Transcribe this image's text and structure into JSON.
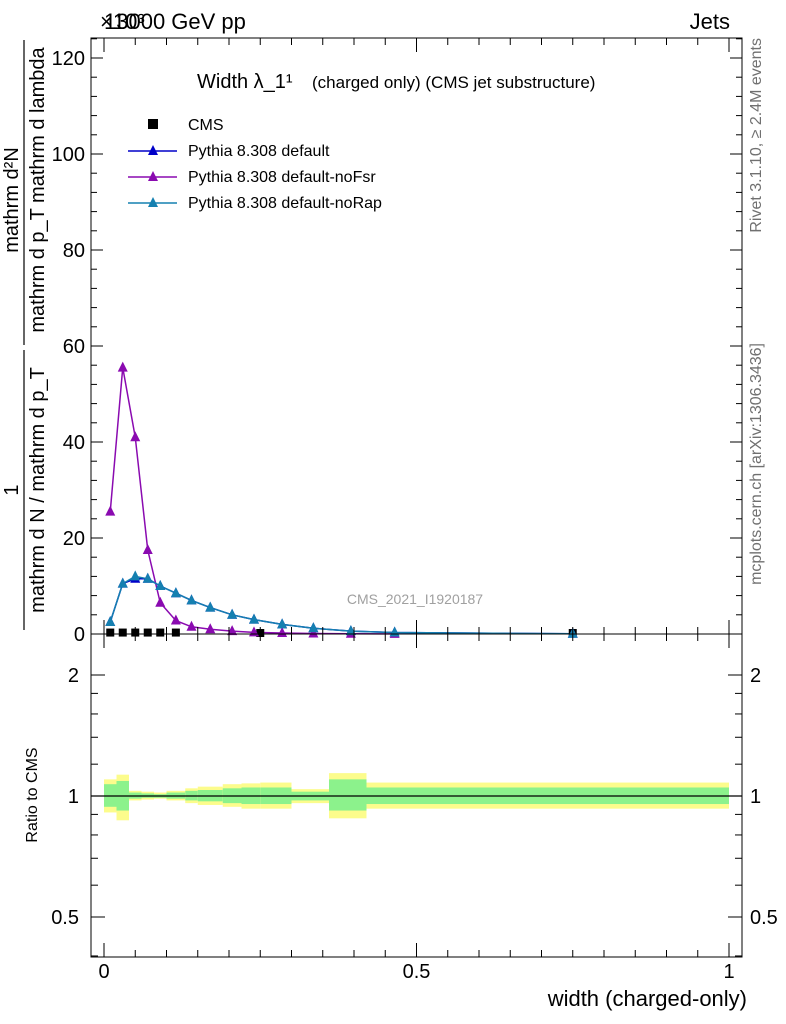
{
  "header": {
    "left": "13000 GeV pp",
    "right": "Jets",
    "exponent": "×10³"
  },
  "side_labels": {
    "upper": "Rivet 3.1.10, ≥ 2.4M events",
    "lower": "mcplots.cern.ch [arXiv:1306.3436]"
  },
  "watermark": "CMS_2021_I1920187",
  "colors": {
    "data": "#000000",
    "default": "#0000c8",
    "noFsr": "#8a0ab0",
    "noRap": "#1580b0",
    "band_inner": "#8cf28c",
    "band_outer": "#fcfc8c"
  },
  "chart_data": [
    {
      "type": "line",
      "title": "Width λ_1¹",
      "title_note": "(charged only) (CMS jet substructure)",
      "xlabel": "width (charged-only)",
      "ylabel": {
        "numerator_left": "1",
        "denominator_left": "mathrm d N / mathrm d p_T",
        "numerator_right": "mathrm d²N",
        "denominator_right": "mathrm d p_T mathrm d lambda"
      },
      "xlim": [
        0,
        1
      ],
      "ylim": [
        0,
        125
      ],
      "y_multiplier": "×10³",
      "yticks": [
        0,
        20,
        40,
        60,
        80,
        100,
        120
      ],
      "xticks": [
        0,
        0.5,
        1
      ],
      "grid": false,
      "legend_position": "top-left",
      "legend": [
        "CMS",
        "Pythia 8.308 default",
        "Pythia 8.308 default-noFsr",
        "Pythia 8.308 default-noRap"
      ],
      "series": [
        {
          "name": "CMS",
          "style": "markers",
          "x": [
            0.01,
            0.03,
            0.05,
            0.07,
            0.09,
            0.115,
            0.25,
            0.75
          ],
          "y": [
            0.3,
            0.3,
            0.3,
            0.3,
            0.3,
            0.3,
            0.2,
            0.1
          ]
        },
        {
          "name": "Pythia 8.308 default",
          "style": "line-triangle",
          "x": [
            0.01,
            0.03,
            0.05,
            0.07,
            0.09,
            0.115,
            0.14,
            0.17,
            0.205,
            0.24,
            0.285,
            0.335,
            0.395,
            0.465,
            0.75
          ],
          "y": [
            2.5,
            10.5,
            11.5,
            11.5,
            10,
            8.5,
            7,
            5.5,
            4,
            3,
            2,
            1.2,
            0.6,
            0.3,
            0.05
          ]
        },
        {
          "name": "Pythia 8.308 default-noFsr",
          "style": "line-triangle",
          "x": [
            0.01,
            0.03,
            0.05,
            0.07,
            0.09,
            0.115,
            0.14,
            0.17,
            0.205,
            0.24,
            0.285,
            0.335,
            0.395,
            0.465
          ],
          "y": [
            25.5,
            55.5,
            41,
            17.5,
            6.5,
            2.8,
            1.5,
            1,
            0.6,
            0.35,
            0.2,
            0.1,
            0.05,
            0.02
          ]
        },
        {
          "name": "Pythia 8.308 default-noRap",
          "style": "line-triangle",
          "x": [
            0.01,
            0.03,
            0.05,
            0.07,
            0.09,
            0.115,
            0.14,
            0.17,
            0.205,
            0.24,
            0.285,
            0.335,
            0.395,
            0.465,
            0.75
          ],
          "y": [
            2.5,
            10.5,
            12,
            11.5,
            10,
            8.5,
            7,
            5.5,
            4,
            3,
            2,
            1.2,
            0.6,
            0.3,
            0.05
          ]
        }
      ]
    },
    {
      "type": "area",
      "ylabel": "Ratio to CMS",
      "xlabel": "width (charged-only)",
      "xlim": [
        0,
        1
      ],
      "ylim": [
        0.4,
        2.3
      ],
      "yscale": "log",
      "yticks": [
        0.5,
        1,
        2
      ],
      "bins": [
        0,
        0.02,
        0.04,
        0.06,
        0.08,
        0.1,
        0.13,
        0.15,
        0.19,
        0.22,
        0.25,
        0.3,
        0.32,
        0.36,
        0.42,
        0.5,
        0.6,
        0.7,
        0.8,
        1.0
      ],
      "outer_band": {
        "lo": [
          0.91,
          0.87,
          0.975,
          0.98,
          0.985,
          0.975,
          0.96,
          0.95,
          0.94,
          0.93,
          0.93,
          0.96,
          0.96,
          0.88,
          0.93,
          0.93,
          0.93,
          0.93,
          0.93
        ],
        "hi": [
          1.1,
          1.13,
          1.03,
          1.025,
          1.02,
          1.03,
          1.045,
          1.055,
          1.07,
          1.075,
          1.08,
          1.04,
          1.04,
          1.14,
          1.08,
          1.08,
          1.08,
          1.08,
          1.08
        ]
      },
      "inner_band": {
        "lo": [
          0.94,
          0.92,
          0.985,
          0.99,
          0.99,
          0.985,
          0.975,
          0.97,
          0.96,
          0.955,
          0.955,
          0.975,
          0.975,
          0.92,
          0.955,
          0.955,
          0.955,
          0.955,
          0.955
        ],
        "hi": [
          1.07,
          1.09,
          1.02,
          1.015,
          1.01,
          1.02,
          1.03,
          1.035,
          1.045,
          1.05,
          1.05,
          1.025,
          1.025,
          1.1,
          1.05,
          1.05,
          1.05,
          1.05,
          1.05
        ]
      },
      "reference_line": 1
    }
  ]
}
